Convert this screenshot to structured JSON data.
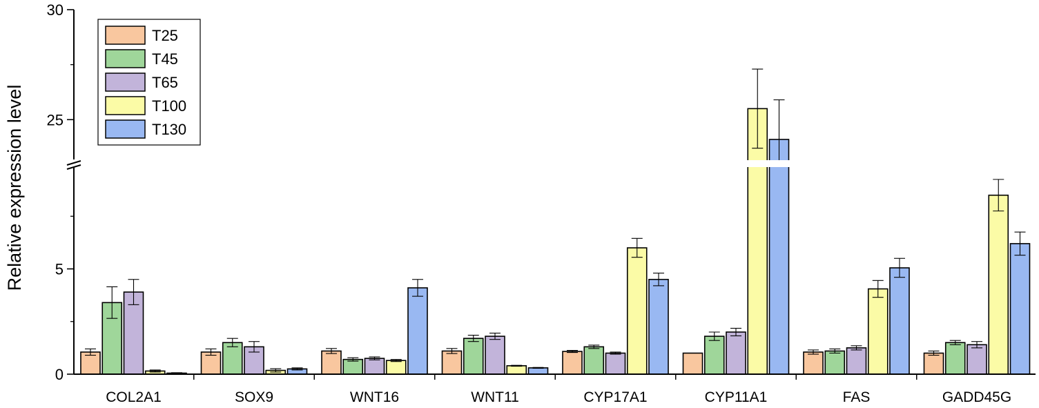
{
  "chart_data": {
    "type": "bar",
    "ylabel": "Relative expression level",
    "xlabel": "",
    "y_ticks": [
      "0",
      "5",
      "25",
      "30"
    ],
    "y_axis_break": [
      10,
      23
    ],
    "ylim": [
      0,
      30
    ],
    "categories": [
      "COL2A1",
      "SOX9",
      "WNT16",
      "WNT11",
      "CYP17A1",
      "CYP11A1",
      "FAS",
      "GADD45G"
    ],
    "series": [
      {
        "name": "T25",
        "color": "#F9C79F",
        "values": [
          1.05,
          1.05,
          1.1,
          1.1,
          1.08,
          1.0,
          1.05,
          1.0
        ],
        "errors": [
          0.15,
          0.15,
          0.12,
          0.12,
          0.05,
          0.0,
          0.1,
          0.1
        ]
      },
      {
        "name": "T45",
        "color": "#9FD69A",
        "values": [
          3.4,
          1.5,
          0.7,
          1.7,
          1.3,
          1.8,
          1.1,
          1.5
        ],
        "errors": [
          0.75,
          0.2,
          0.08,
          0.15,
          0.08,
          0.2,
          0.1,
          0.1
        ]
      },
      {
        "name": "T65",
        "color": "#C2B4DA",
        "values": [
          3.9,
          1.3,
          0.75,
          1.8,
          1.0,
          2.0,
          1.25,
          1.4
        ],
        "errors": [
          0.6,
          0.25,
          0.07,
          0.15,
          0.05,
          0.18,
          0.1,
          0.15
        ]
      },
      {
        "name": "T100",
        "color": "#FBFBA6",
        "values": [
          0.15,
          0.18,
          0.65,
          0.4,
          6.0,
          25.5,
          4.05,
          8.5
        ],
        "errors": [
          0.05,
          0.08,
          0.05,
          0.02,
          0.45,
          1.8,
          0.4,
          0.75
        ]
      },
      {
        "name": "T130",
        "color": "#99B8F2",
        "values": [
          0.05,
          0.25,
          4.1,
          0.3,
          4.5,
          24.1,
          5.05,
          6.2
        ],
        "errors": [
          0.02,
          0.05,
          0.4,
          0.02,
          0.3,
          1.8,
          0.45,
          0.55
        ]
      }
    ],
    "legend_position": "top-left",
    "grid": false
  }
}
